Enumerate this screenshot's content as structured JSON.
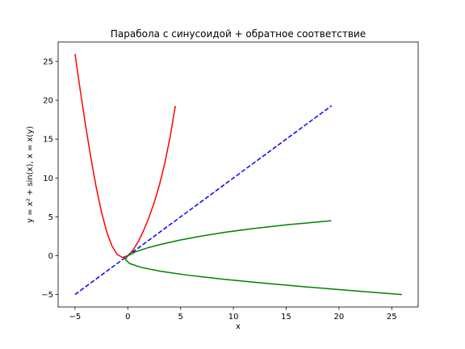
{
  "chart_data": {
    "type": "line",
    "title": "Парабола с синусоидой + обратное соответствие",
    "xlabel": "x",
    "ylabel": "y = x² + sin(x), x = x(y)",
    "xlim": [
      -6.6,
      27.5
    ],
    "ylim": [
      -6.6,
      27.5
    ],
    "xticks": [
      -5,
      0,
      5,
      10,
      15,
      20,
      25
    ],
    "yticks": [
      -5,
      0,
      5,
      10,
      15,
      20,
      25
    ],
    "xtick_labels": [
      "−5",
      "0",
      "5",
      "10",
      "15",
      "20",
      "25"
    ],
    "ytick_labels": [
      "−5",
      "0",
      "5",
      "10",
      "15",
      "20",
      "25"
    ],
    "grid": false,
    "series": [
      {
        "color": "#ff0000",
        "style": "solid",
        "x": [
          -5.0,
          -4.5,
          -4.0,
          -3.5,
          -3.0,
          -2.5,
          -2.0,
          -1.5,
          -1.0,
          -0.5,
          0.0,
          0.5,
          1.0,
          1.5,
          2.0,
          2.5,
          3.0,
          3.5,
          4.0,
          4.5
        ],
        "y": [
          25.96,
          21.23,
          16.76,
          12.6,
          8.86,
          5.65,
          3.09,
          1.25,
          0.16,
          -0.23,
          0.0,
          0.73,
          1.84,
          3.25,
          4.91,
          6.85,
          9.14,
          11.9,
          15.24,
          19.27
        ]
      },
      {
        "color": "#0000ff",
        "style": "dashed",
        "x": [
          -5.0,
          19.3
        ],
        "y": [
          -5.0,
          19.3
        ]
      },
      {
        "color": "#008000",
        "style": "solid",
        "x": [
          19.27,
          15.24,
          11.9,
          9.14,
          6.85,
          4.91,
          3.25,
          1.84,
          0.73,
          0.0,
          -0.23,
          0.16,
          1.25,
          3.09,
          5.65,
          8.86,
          12.6,
          16.76,
          21.23,
          25.96
        ],
        "y": [
          4.5,
          4.0,
          3.5,
          3.0,
          2.5,
          2.0,
          1.5,
          1.0,
          0.5,
          0.0,
          -0.5,
          -1.0,
          -1.5,
          -2.0,
          -2.5,
          -3.0,
          -3.5,
          -4.0,
          -4.5,
          -5.0
        ]
      }
    ]
  }
}
